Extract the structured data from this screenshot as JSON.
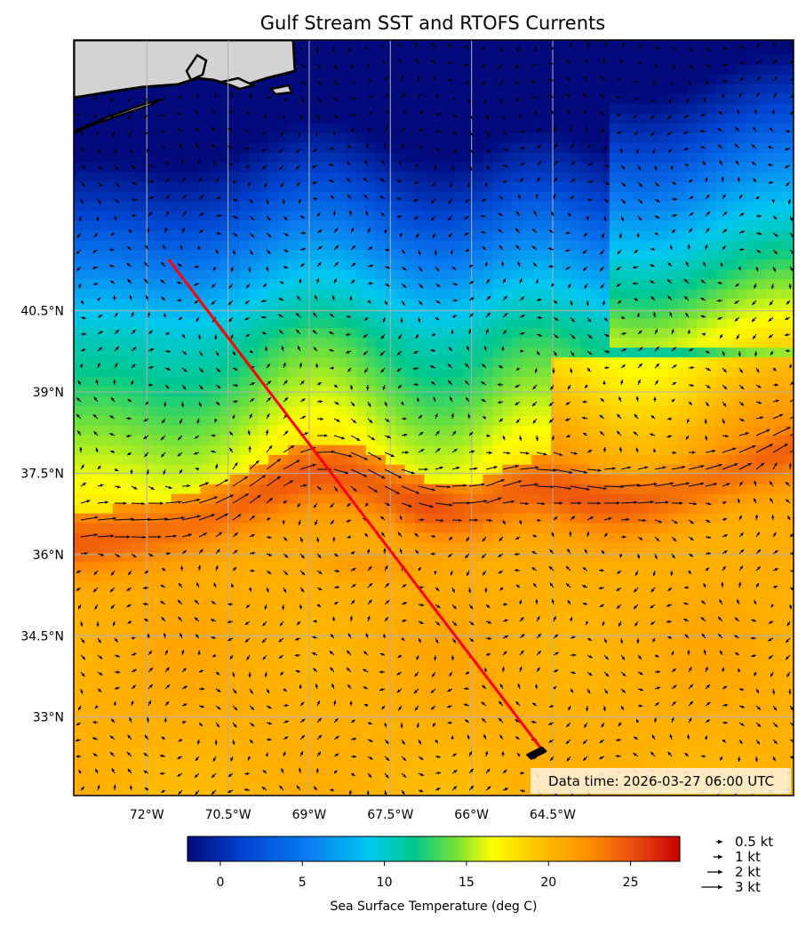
{
  "title": "Gulf Stream SST and RTOFS Currents",
  "colors": {
    "land": "#d3d3d3",
    "coastline": "#000000",
    "track": "#ff0000",
    "grid": "#b0b0b0",
    "info_box": "#fff1d6"
  },
  "map": {
    "lon_range": [
      -73.35,
      -60.05
    ],
    "lat_range": [
      31.55,
      45.5
    ],
    "grid": true,
    "lon_ticks": [
      {
        "value": -72,
        "label": "72°W"
      },
      {
        "value": -70.5,
        "label": "70.5°W"
      },
      {
        "value": -69,
        "label": "69°W"
      },
      {
        "value": -67.5,
        "label": "67.5°W"
      },
      {
        "value": -66,
        "label": "66°W"
      },
      {
        "value": -64.5,
        "label": "64.5°W"
      }
    ],
    "lat_ticks": [
      {
        "value": 40.5,
        "label": "40.5°N"
      },
      {
        "value": 39,
        "label": "39°N"
      },
      {
        "value": 37.5,
        "label": "37.5°N"
      },
      {
        "value": 36,
        "label": "36°N"
      },
      {
        "value": 34.5,
        "label": "34.5°N"
      },
      {
        "value": 33,
        "label": "33°N"
      }
    ],
    "track": {
      "start": {
        "lon": -71.6,
        "lat": 41.45
      },
      "end": {
        "lon": -64.7,
        "lat": 32.4
      }
    },
    "data_time_label": "Data time: 2026-03-27 06:00 UTC"
  },
  "colorbar": {
    "label": "Sea Surface Temperature (deg C)",
    "range": [
      -2,
      28
    ],
    "ticks": [
      0,
      5,
      10,
      15,
      20,
      25
    ]
  },
  "current_key": {
    "entries": [
      {
        "speed": 0.5,
        "label": "0.5 kt"
      },
      {
        "speed": 1,
        "label": "1 kt"
      },
      {
        "speed": 2,
        "label": "2 kt"
      },
      {
        "speed": 3,
        "label": "3 kt"
      }
    ]
  }
}
